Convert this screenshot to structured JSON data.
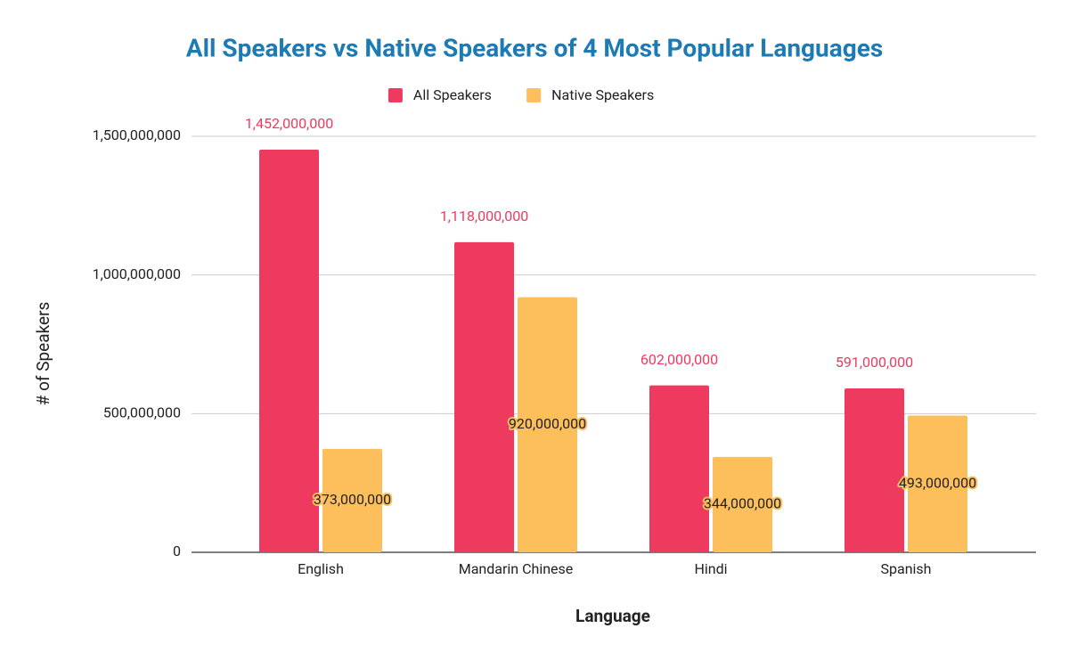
{
  "chart_data": {
    "type": "bar",
    "title": "All Speakers vs Native Speakers of 4 Most Popular Languages",
    "x_label": "Language",
    "y_label": "# of Speakers",
    "categories": [
      "English",
      "Mandarin Chinese",
      "Hindi",
      "Spanish"
    ],
    "series": [
      {
        "name": "All Speakers",
        "color": "#ee3a5e",
        "values": [
          1452000000,
          1118000000,
          602000000,
          591000000
        ],
        "value_labels": [
          "1,452,000,000",
          "1,118,000,000",
          "602,000,000",
          "591,000,000"
        ]
      },
      {
        "name": "Native Speakers",
        "color": "#fdbf5b",
        "values": [
          373000000,
          920000000,
          344000000,
          493000000
        ],
        "value_labels": [
          "373,000,000",
          "920,000,000",
          "344,000,000",
          "493,000,000"
        ]
      }
    ],
    "ylim": [
      0,
      1500000000
    ],
    "yticks": [
      0,
      {
        "value": 500000000,
        "label": "500,000,000"
      },
      {
        "value": 1000000000,
        "label": "1,000,000,000"
      },
      {
        "value": 1500000000,
        "label": "1,500,000,000"
      }
    ],
    "grid": true,
    "legend": "top"
  }
}
